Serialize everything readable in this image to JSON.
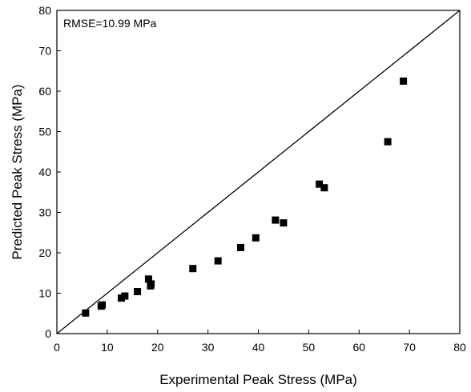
{
  "chart_data": {
    "type": "scatter",
    "xlabel": "Experimental Peak Stress (MPa)",
    "ylabel": "Predicted Peak Stress (MPa)",
    "xlim": [
      0,
      80
    ],
    "ylim": [
      0,
      80
    ],
    "x_ticks": [
      "0",
      "10",
      "20",
      "30",
      "40",
      "50",
      "60",
      "70",
      "80"
    ],
    "y_ticks": [
      "0",
      "10",
      "20",
      "30",
      "40",
      "50",
      "60",
      "70",
      "80"
    ],
    "annotation": "RMSE=10.99 MPa",
    "reference_line": {
      "type": "y=x",
      "from": [
        0,
        0
      ],
      "to": [
        80,
        80
      ]
    },
    "grid": false,
    "marker": "square",
    "marker_color": "#000000",
    "series": [
      {
        "points": [
          {
            "x": 5.7,
            "y": 5.1
          },
          {
            "x": 8.8,
            "y": 6.8
          },
          {
            "x": 9.0,
            "y": 7.1
          },
          {
            "x": 12.8,
            "y": 8.8
          },
          {
            "x": 13.5,
            "y": 9.3
          },
          {
            "x": 16.0,
            "y": 10.4
          },
          {
            "x": 18.2,
            "y": 13.5
          },
          {
            "x": 18.6,
            "y": 11.8
          },
          {
            "x": 18.7,
            "y": 12.3
          },
          {
            "x": 27.0,
            "y": 16.1
          },
          {
            "x": 32.0,
            "y": 18.0
          },
          {
            "x": 36.5,
            "y": 21.3
          },
          {
            "x": 39.5,
            "y": 23.7
          },
          {
            "x": 43.4,
            "y": 28.1
          },
          {
            "x": 45.0,
            "y": 27.4
          },
          {
            "x": 52.1,
            "y": 37.0
          },
          {
            "x": 53.1,
            "y": 36.1
          },
          {
            "x": 65.7,
            "y": 47.5
          },
          {
            "x": 68.8,
            "y": 62.5
          }
        ]
      }
    ]
  }
}
